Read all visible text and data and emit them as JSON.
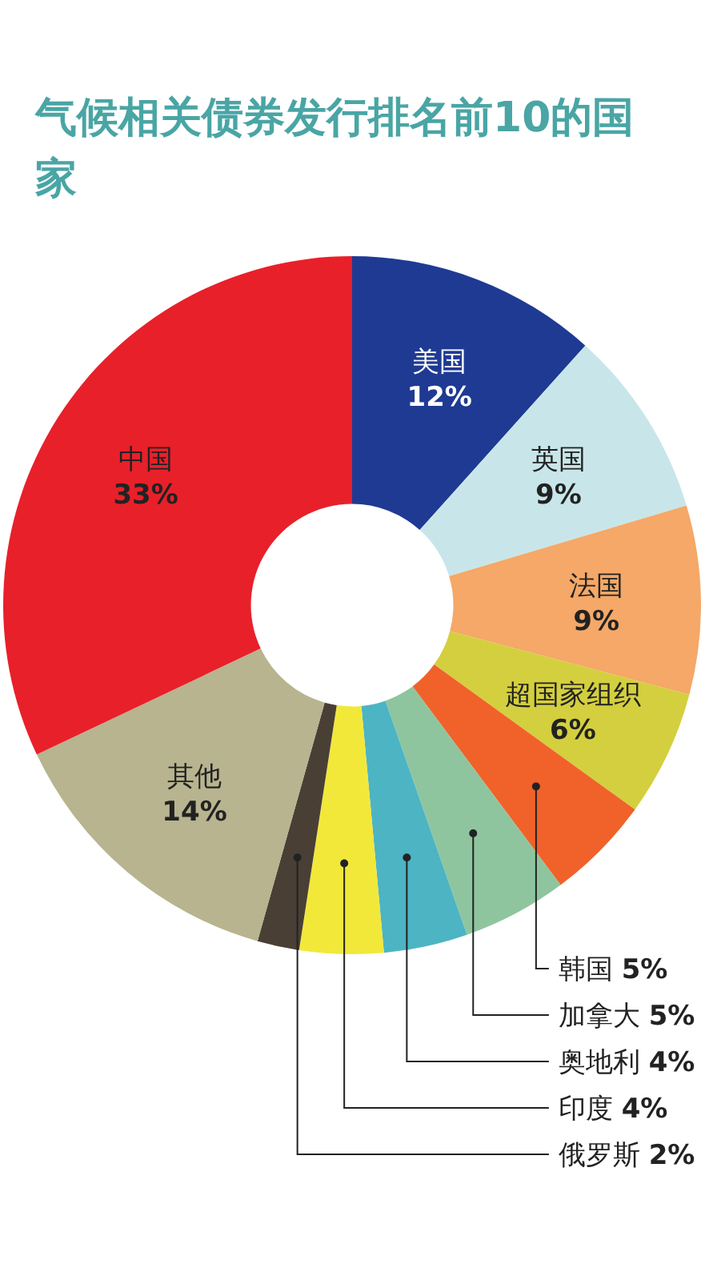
{
  "chart_data": {
    "type": "donut",
    "title": "气候相关债券发行排名前10的国家",
    "categories": [
      "美国",
      "英国",
      "法国",
      "超国家组织",
      "韩国",
      "加拿大",
      "奥地利",
      "印度",
      "俄罗斯",
      "其他",
      "中国"
    ],
    "values": [
      12,
      9,
      9,
      6,
      5,
      5,
      4,
      4,
      2,
      14,
      33
    ],
    "colors": [
      "#1f3a93",
      "#c8e6ea",
      "#f5a867",
      "#d4cf3e",
      "#f0622a",
      "#8fc59e",
      "#4db4c4",
      "#f2e83a",
      "#4a3f35",
      "#b7b48f",
      "#e8202a"
    ],
    "value_labels": [
      "12%",
      "9%",
      "9%",
      "6%",
      "5%",
      "5%",
      "4%",
      "4%",
      "2%",
      "14%",
      "33%"
    ]
  }
}
